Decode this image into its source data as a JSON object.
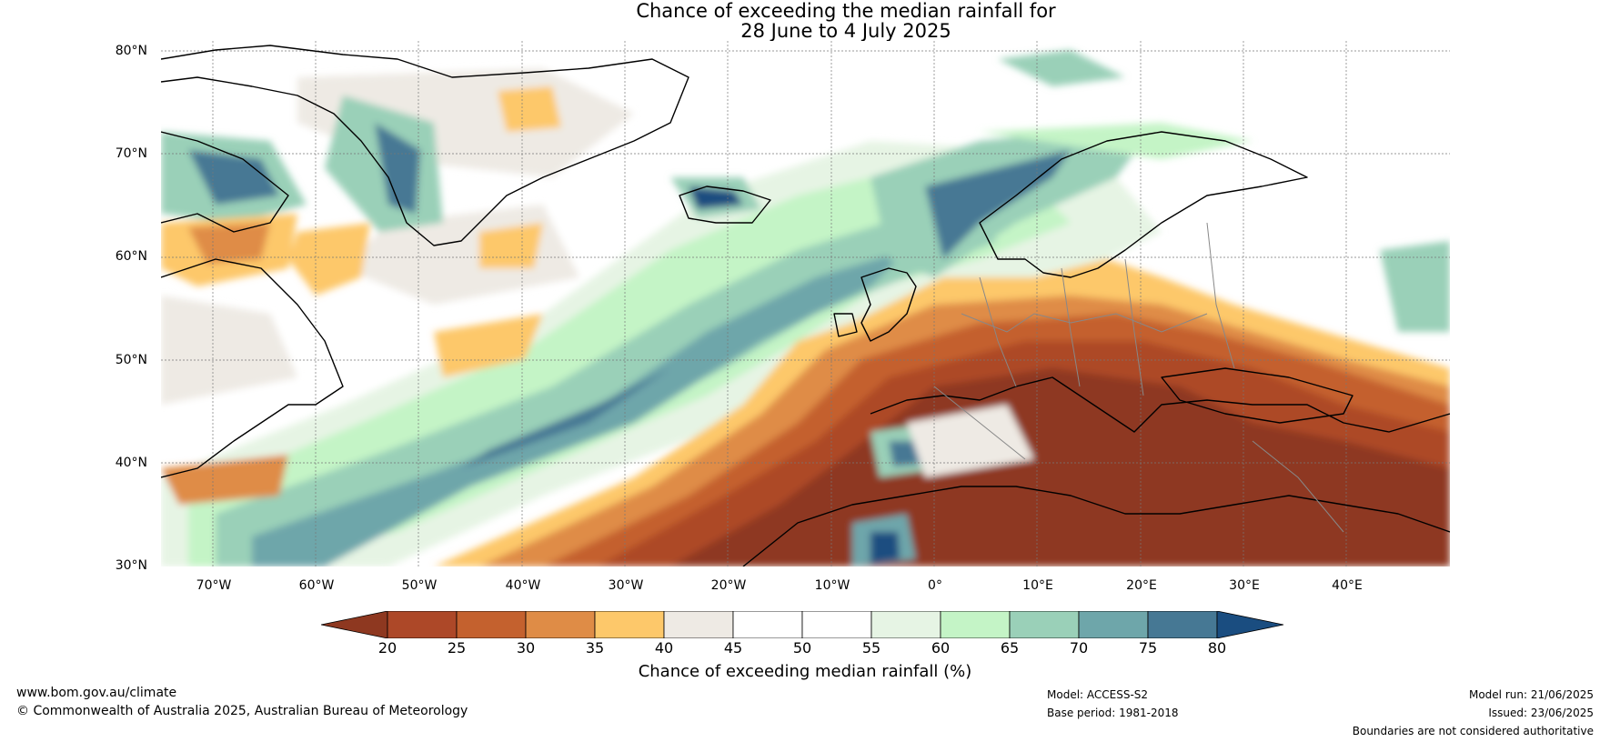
{
  "title": {
    "line1": "Chance of exceeding the median rainfall for",
    "line2": "28 June to 4 July 2025"
  },
  "map": {
    "region": "North Atlantic and Europe",
    "lat_range": [
      30,
      81
    ],
    "lon_range": [
      -75,
      50
    ],
    "lat_labels": [
      "80°N",
      "70°N",
      "60°N",
      "50°N",
      "40°N",
      "30°N"
    ],
    "lon_labels": [
      "70°W",
      "60°W",
      "50°W",
      "40°W",
      "30°W",
      "20°W",
      "10°W",
      "0°",
      "10°E",
      "20°E",
      "30°E",
      "40°E"
    ],
    "gridlines": true,
    "ocean_color": "#ffffff"
  },
  "colorbar": {
    "ticks": [
      "20",
      "25",
      "30",
      "35",
      "40",
      "45",
      "50",
      "55",
      "60",
      "65",
      "70",
      "75",
      "80"
    ],
    "colors": [
      "#8e3820",
      "#ad4828",
      "#c4612e",
      "#df8c46",
      "#fdc86a",
      "#eeeae4",
      "#ffffff",
      "#ffffff",
      "#e6f4e4",
      "#c4f4c6",
      "#9ad0b8",
      "#6ea6aa",
      "#467894",
      "#1a4d80"
    ],
    "label": "Chance of exceeding median rainfall (%)"
  },
  "footer": {
    "website": "www.bom.gov.au/climate",
    "copyright": "© Commonwealth of Australia 2025, Australian Bureau of Meteorology",
    "model": "Model: ACCESS-S2",
    "base_period": "Base period: 1981-2018",
    "model_run": "Model run: 21/06/2025",
    "issued": "Issued: 23/06/2025",
    "disclaimer": "Boundaries are not considered authoritative"
  }
}
